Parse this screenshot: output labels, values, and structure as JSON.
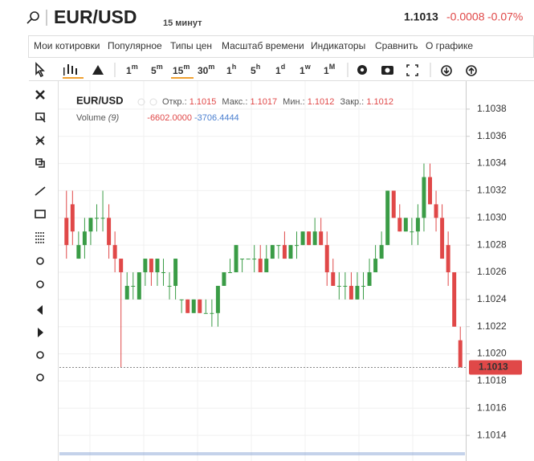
{
  "header": {
    "symbol": "EUR/USD",
    "timeframe": "15 минут",
    "price": "1.1013",
    "change": "-0.0008",
    "change_pct": "-0.07%"
  },
  "menu": [
    "Мои котировки",
    "Популярное",
    "Типы цен",
    "Масштаб времени",
    "Индикаторы",
    "Сравнить",
    "О графике"
  ],
  "timeframes": [
    {
      "num": "1",
      "unit": "m"
    },
    {
      "num": "5",
      "unit": "m"
    },
    {
      "num": "15",
      "unit": "m"
    },
    {
      "num": "30",
      "unit": "m"
    },
    {
      "num": "1",
      "unit": "h"
    },
    {
      "num": "5",
      "unit": "h"
    },
    {
      "num": "1",
      "unit": "d"
    },
    {
      "num": "1",
      "unit": "w"
    },
    {
      "num": "1",
      "unit": "M"
    }
  ],
  "chart_data": {
    "type": "candlestick",
    "title": "EUR/USD",
    "legend": {
      "open_label": "Откр.:",
      "open": "1.1015",
      "high_label": "Макс.:",
      "high": "1.1017",
      "low_label": "Мин.:",
      "low": "1.1012",
      "close_label": "Закр.:",
      "close": "1.1012",
      "volume_label": "Volume",
      "volume_param": "(9)",
      "volume_value": "-6602.0000",
      "volume_ma": "-3706.4444"
    },
    "up_color": "#3a9c46",
    "down_color": "#e04848",
    "open": [
      1.103,
      1.1031,
      1.1027,
      1.1028,
      1.1029,
      1.103,
      1.103,
      1.103,
      1.1028,
      1.1027,
      1.1024,
      1.1025,
      1.1024,
      1.1026,
      1.1027,
      1.1026,
      1.1026,
      1.1025,
      1.1025,
      1.1024,
      1.1024,
      1.1023,
      1.1024,
      1.1023,
      1.1023,
      1.1023,
      1.1025,
      1.1026,
      1.1026,
      1.1027,
      1.1027,
      1.1027,
      1.1027,
      1.1026,
      1.1027,
      1.1028,
      1.1028,
      1.1027,
      1.1028,
      1.1028,
      1.1029,
      1.1028,
      1.1029,
      1.1028,
      1.1026,
      1.1025,
      1.1025,
      1.1025,
      1.1024,
      1.1025,
      1.1025,
      1.1026,
      1.1027,
      1.1028,
      1.1032,
      1.103,
      1.1029,
      1.1029,
      1.1029,
      1.103,
      1.1033,
      1.1031,
      1.103,
      1.1028,
      1.1026,
      1.1021
    ],
    "high": [
      1.1032,
      1.1032,
      1.1029,
      1.103,
      1.103,
      1.1031,
      1.1032,
      1.1031,
      1.1029,
      1.1027,
      1.1026,
      1.1026,
      1.1026,
      1.1027,
      1.1027,
      1.1027,
      1.1027,
      1.1026,
      1.1027,
      1.1024,
      1.1024,
      1.1024,
      1.1024,
      1.1024,
      1.1024,
      1.1025,
      1.1026,
      1.1027,
      1.1028,
      1.1027,
      1.1027,
      1.1028,
      1.1028,
      1.1028,
      1.1028,
      1.1028,
      1.1029,
      1.1028,
      1.1029,
      1.1029,
      1.1029,
      1.103,
      1.103,
      1.1029,
      1.1027,
      1.1026,
      1.1026,
      1.1026,
      1.1026,
      1.1026,
      1.1027,
      1.1028,
      1.1029,
      1.1032,
      1.1032,
      1.1031,
      1.103,
      1.103,
      1.1031,
      1.1034,
      1.1034,
      1.1032,
      1.1031,
      1.1029,
      1.1026,
      1.1022
    ],
    "low": [
      1.1027,
      1.1028,
      1.1027,
      1.1027,
      1.1028,
      1.1029,
      1.1029,
      1.1027,
      1.1026,
      1.1019,
      1.1024,
      1.1024,
      1.1024,
      1.1025,
      1.1025,
      1.1025,
      1.1025,
      1.1024,
      1.1024,
      1.1023,
      1.1023,
      1.1023,
      1.1023,
      1.1023,
      1.1022,
      1.1022,
      1.1025,
      1.1026,
      1.1026,
      1.1026,
      1.1027,
      1.1026,
      1.1026,
      1.1026,
      1.1027,
      1.1027,
      1.1027,
      1.1027,
      1.1027,
      1.1028,
      1.1028,
      1.1028,
      1.1028,
      1.1025,
      1.1025,
      1.1024,
      1.1024,
      1.1024,
      1.1024,
      1.1024,
      1.1025,
      1.1026,
      1.1027,
      1.1028,
      1.103,
      1.1029,
      1.1029,
      1.1028,
      1.1028,
      1.1029,
      1.1031,
      1.1029,
      1.1027,
      1.1025,
      1.1022,
      1.1019
    ],
    "close": [
      1.1028,
      1.1029,
      1.1028,
      1.1029,
      1.103,
      1.103,
      1.103,
      1.1028,
      1.1027,
      1.1026,
      1.1025,
      1.1025,
      1.1026,
      1.1027,
      1.1026,
      1.1027,
      1.1026,
      1.1025,
      1.1027,
      1.1024,
      1.1023,
      1.1024,
      1.1023,
      1.1023,
      1.1023,
      1.1025,
      1.1026,
      1.1026,
      1.1028,
      1.1027,
      1.1027,
      1.1027,
      1.1026,
      1.1027,
      1.1028,
      1.1028,
      1.1027,
      1.1028,
      1.1028,
      1.1029,
      1.1028,
      1.1029,
      1.1028,
      1.1026,
      1.1025,
      1.1025,
      1.1025,
      1.1024,
      1.1025,
      1.1025,
      1.1026,
      1.1027,
      1.1028,
      1.1032,
      1.103,
      1.1029,
      1.103,
      1.1029,
      1.103,
      1.1033,
      1.1031,
      1.103,
      1.1027,
      1.1026,
      1.1022,
      1.1019
    ],
    "ylim": [
      1.1012,
      1.104
    ],
    "yticks": [
      1.1014,
      1.1016,
      1.1018,
      {
        "value": 1.102,
        "label": "1.1020"
      },
      1.1022,
      1.1024,
      1.1026,
      1.1028,
      {
        "value": 1.103,
        "label": "1.1030"
      },
      1.1032,
      1.1034,
      1.1036,
      1.1038
    ],
    "grid": true
  }
}
